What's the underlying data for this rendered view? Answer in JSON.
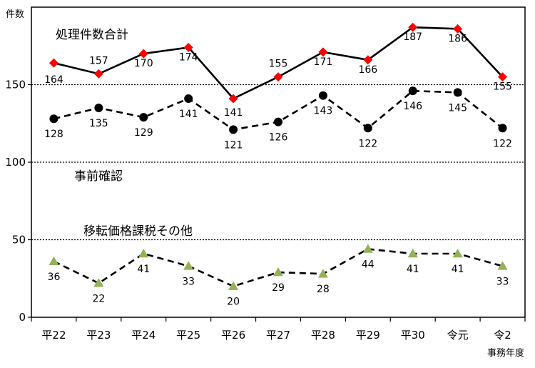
{
  "chart_data": {
    "type": "line",
    "y_unit": "件数",
    "xlabel": "事務年度",
    "categories": [
      "平22",
      "平23",
      "平24",
      "平25",
      "平26",
      "平27",
      "平28",
      "平29",
      "平30",
      "令元",
      "令2"
    ],
    "ylim": [
      0,
      200
    ],
    "y_ticks": [
      0,
      50,
      100,
      150
    ],
    "dotted_gridlines_at": [
      50,
      100,
      150
    ],
    "legend": "none",
    "series": [
      {
        "name": "処理件数合計",
        "values": [
          164,
          157,
          170,
          174,
          141,
          155,
          171,
          166,
          187,
          186,
          155
        ],
        "line": "solid",
        "line_color": "#000000",
        "marker": "diamond",
        "marker_color": "#ff0000"
      },
      {
        "name": "事前確認",
        "values": [
          128,
          135,
          129,
          141,
          121,
          126,
          143,
          122,
          146,
          145,
          122
        ],
        "line": "dashed",
        "line_color": "#000000",
        "marker": "circle",
        "marker_color": "#000000"
      },
      {
        "name": "移転価格課税その他",
        "values": [
          36,
          22,
          41,
          33,
          20,
          29,
          28,
          44,
          41,
          41,
          33
        ],
        "line": "dashed",
        "line_color": "#000000",
        "marker": "triangle",
        "marker_color": "#92b255"
      }
    ]
  }
}
